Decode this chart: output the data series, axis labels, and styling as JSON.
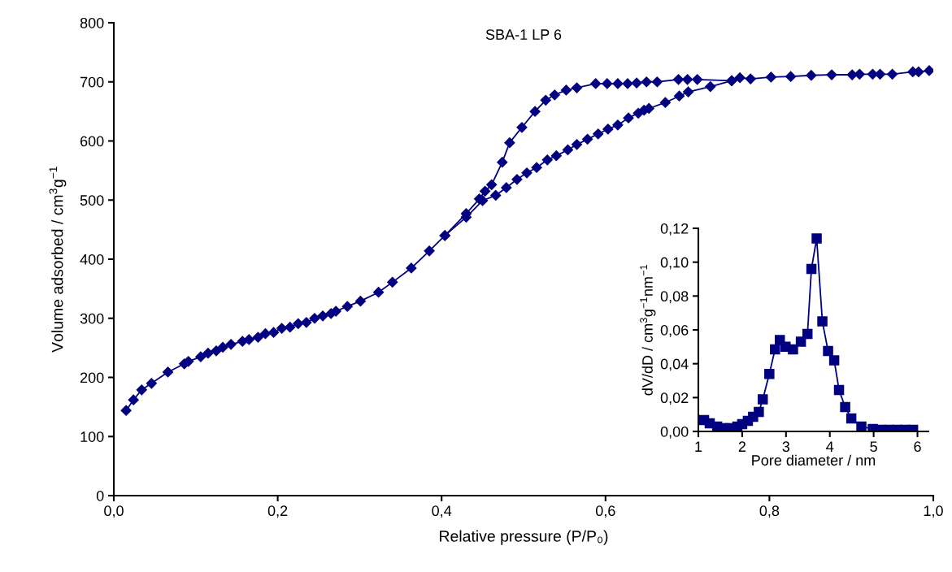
{
  "chart_data": [
    {
      "type": "line",
      "title": "SBA-1 LP 6",
      "xlabel": "Relative pressure (P/P₀)",
      "ylabel": "Volume adsorbed / cm$^{3}$g$^{−1}$",
      "marker": "diamond",
      "grid": false,
      "xlim": [
        0,
        1
      ],
      "ylim": [
        0,
        800
      ],
      "xticks": [
        {
          "value": 0,
          "label": "0,0"
        },
        {
          "value": 0.2,
          "label": "0,2"
        },
        {
          "value": 0.4,
          "label": "0,4"
        },
        {
          "value": 0.6,
          "label": "0,6"
        },
        {
          "value": 0.8,
          "label": "0,8"
        },
        {
          "value": 1,
          "label": "1,0"
        }
      ],
      "yticks": [
        0,
        100,
        200,
        300,
        400,
        500,
        600,
        700,
        800
      ],
      "series": [
        {
          "color": "#000080",
          "x": [
            0.015,
            0.024,
            0.034,
            0.046,
            0.066,
            0.086,
            0.091,
            0.106,
            0.115,
            0.125,
            0.133,
            0.143,
            0.157,
            0.165,
            0.176,
            0.185,
            0.195,
            0.205,
            0.215,
            0.225,
            0.235,
            0.245,
            0.255,
            0.265,
            0.271,
            0.285,
            0.301,
            0.323,
            0.34,
            0.363,
            0.385,
            0.404,
            0.43,
            0.45,
            0.466,
            0.479,
            0.492,
            0.504,
            0.516,
            0.529,
            0.54,
            0.554,
            0.565,
            0.578,
            0.591,
            0.603,
            0.615,
            0.628,
            0.64,
            0.647,
            0.653,
            0.673,
            0.69,
            0.701,
            0.728,
            0.754,
            0.764,
            0.777,
            0.802,
            0.826,
            0.851,
            0.876,
            0.901,
            0.91,
            0.926,
            0.935,
            0.95,
            0.975,
            0.982,
            0.995
          ],
          "values": [
            144,
            162,
            179,
            190,
            209,
            223,
            227,
            235,
            241,
            245,
            251,
            256,
            261,
            264,
            268,
            274,
            276,
            283,
            285,
            291,
            293,
            300,
            304,
            308,
            312,
            320,
            329,
            344,
            361,
            385,
            414,
            440,
            471,
            499,
            508,
            521,
            535,
            546,
            555,
            568,
            575,
            585,
            594,
            603,
            612,
            620,
            627,
            639,
            647,
            652,
            655,
            665,
            676,
            683,
            692,
            702,
            707,
            705,
            708,
            709,
            711,
            712,
            712,
            713,
            713,
            713,
            713,
            717,
            717,
            719
          ]
        },
        {
          "color": "#000080",
          "x": [
            0.754,
            0.712,
            0.7,
            0.689,
            0.663,
            0.65,
            0.638,
            0.627,
            0.615,
            0.602,
            0.588,
            0.565,
            0.552,
            0.538,
            0.527,
            0.514,
            0.498,
            0.483,
            0.474,
            0.461,
            0.453,
            0.446,
            0.43,
            0.404
          ],
          "values": [
            702,
            704,
            704,
            704,
            700,
            700,
            698,
            697,
            697,
            697,
            697,
            690,
            686,
            678,
            669,
            650,
            623,
            597,
            564,
            526,
            515,
            502,
            477,
            440
          ]
        }
      ]
    },
    {
      "type": "line",
      "xlabel": "Pore diameter / nm",
      "ylabel": "dV/dD / cm$^{3}$g$^{−1}$nm$^{−1}$",
      "marker": "square",
      "grid": false,
      "xlim": [
        1,
        6.25
      ],
      "ylim": [
        0,
        0.12
      ],
      "xticks": [
        1,
        2,
        3,
        4,
        5,
        6
      ],
      "yticks": [
        {
          "value": 0,
          "label": "0,00"
        },
        {
          "value": 0.02,
          "label": "0,02"
        },
        {
          "value": 0.04,
          "label": "0,04"
        },
        {
          "value": 0.06,
          "label": "0,06"
        },
        {
          "value": 0.08,
          "label": "0,08"
        },
        {
          "value": 0.1,
          "label": "0,10"
        },
        {
          "value": 0.12,
          "label": "0,12"
        }
      ],
      "series": [
        {
          "color": "#000080",
          "x": [
            1.13,
            1.26,
            1.43,
            1.58,
            1.72,
            1.89,
            2.0,
            2.13,
            2.25,
            2.38,
            2.47,
            2.62,
            2.75,
            2.86,
            2.99,
            3.16,
            3.34,
            3.49,
            3.58,
            3.7,
            3.83,
            3.96,
            4.1,
            4.21,
            4.35,
            4.49,
            4.72,
            4.98,
            5.17,
            5.35,
            5.54,
            5.72,
            5.9
          ],
          "values": [
            0.0067,
            0.0048,
            0.0029,
            0.0019,
            0.0019,
            0.0029,
            0.0043,
            0.0062,
            0.0086,
            0.0115,
            0.019,
            0.034,
            0.0485,
            0.054,
            0.05,
            0.0485,
            0.053,
            0.0576,
            0.096,
            0.114,
            0.065,
            0.0475,
            0.042,
            0.0245,
            0.0144,
            0.0077,
            0.0029,
            0.0014,
            0.001,
            0.001,
            0.001,
            0.001,
            0.001
          ]
        }
      ]
    }
  ]
}
